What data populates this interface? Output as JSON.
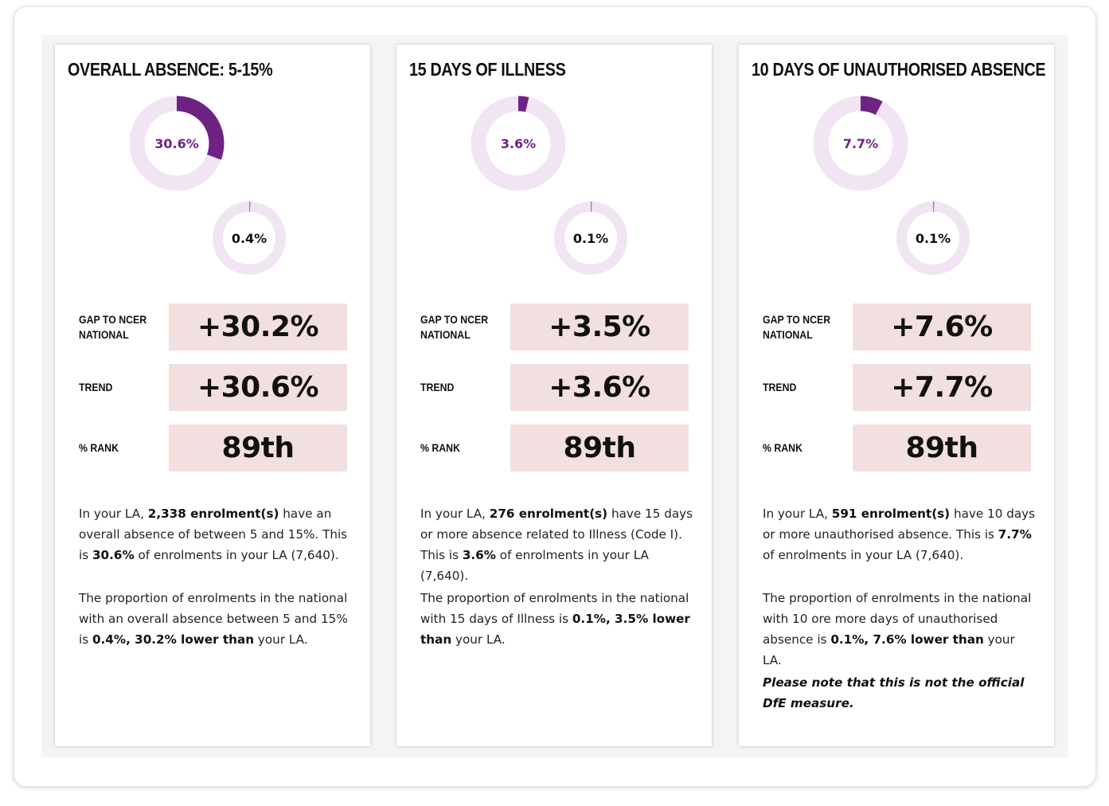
{
  "cards": [
    {
      "title": "OVERALL ABSENCE: 5-15%",
      "la_percent": 30.6,
      "la_label": "30.6%",
      "national_percent": 0.4,
      "national_label": "0.4%",
      "metrics": {
        "gap_label": "GAP TO NCER NATIONAL",
        "gap_value": "+30.2%",
        "trend_label": "TREND",
        "trend_value": "+30.6%",
        "rank_label": "% RANK",
        "rank_value": "89th"
      },
      "p1": {
        "t1": "In your LA, ",
        "b1": "2,338 enrolment(s)",
        "t2": " have an overall absence of between 5 and 15%. This is ",
        "b2": "30.6%",
        "t3": " of enrolments in your LA (7,640)."
      },
      "p2": {
        "t1": "The proportion of enrolments in the national with an overall absence between 5 and 15% is ",
        "b1": "0.4%, 30.2% lower than",
        "t2": " your LA."
      },
      "note": ""
    },
    {
      "title": "15 DAYS OF ILLNESS",
      "la_percent": 3.6,
      "la_label": "3.6%",
      "national_percent": 0.1,
      "national_label": "0.1%",
      "metrics": {
        "gap_label": "GAP TO NCER NATIONAL",
        "gap_value": "+3.5%",
        "trend_label": "TREND",
        "trend_value": "+3.6%",
        "rank_label": "% RANK",
        "rank_value": "89th"
      },
      "p1": {
        "t1": "In your LA, ",
        "b1": "276 enrolment(s)",
        "t2": " have 15 days or more absence related to Illness (Code I). This is ",
        "b2": "3.6%",
        "t3": " of enrolments in your LA (7,640)."
      },
      "p2": {
        "t1": "The proportion of enrolments in the national with 15 days of Illness is ",
        "b1": "0.1%, 3.5% lower than",
        "t2": " your LA."
      },
      "note": ""
    },
    {
      "title": "10 DAYS OF UNAUTHORISED ABSENCE",
      "la_percent": 7.7,
      "la_label": "7.7%",
      "national_percent": 0.1,
      "national_label": "0.1%",
      "metrics": {
        "gap_label": "GAP TO NCER NATIONAL",
        "gap_value": "+7.6%",
        "trend_label": "TREND",
        "trend_value": "+7.7%",
        "rank_label": "% RANK",
        "rank_value": "89th"
      },
      "p1": {
        "t1": "In your LA, ",
        "b1": "591 enrolment(s)",
        "t2": " have 10 days or more unauthorised absence. This is ",
        "b2": "7.7%",
        "t3": " of enrolments in your LA (7,640)."
      },
      "p2": {
        "t1": "The proportion of enrolments in the national with 10 ore more days of unauthorised absence is ",
        "b1": "0.1%, 7.6% lower than",
        "t2": " your LA."
      },
      "note": "Please note that this is not the official DfE measure."
    }
  ],
  "colors": {
    "accent": "#6e2283",
    "ring_track": "#f1e4f3",
    "metric_box": "#f2dfdf",
    "small_marker": "#8a8a8a"
  }
}
